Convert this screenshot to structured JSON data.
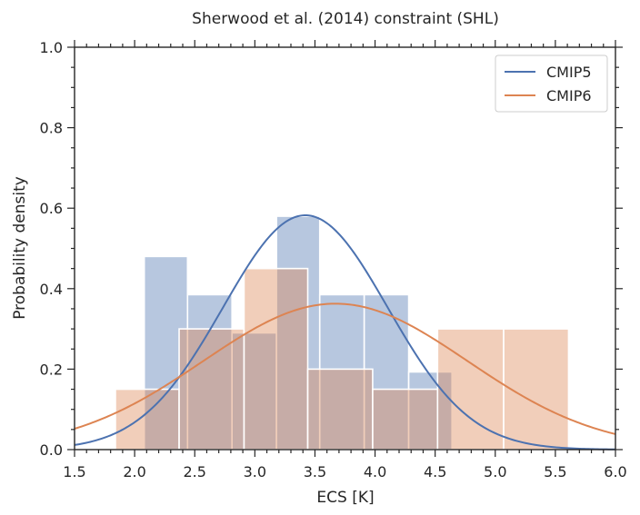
{
  "chart_data": {
    "type": "bar",
    "title": "Sherwood et al. (2014) constraint (SHL)",
    "xlabel": "ECS [K]",
    "ylabel": "Probability density",
    "xlim": [
      1.5,
      6.0
    ],
    "ylim": [
      0.0,
      1.0
    ],
    "xticks": [
      1.5,
      2.0,
      2.5,
      3.0,
      3.5,
      4.0,
      4.5,
      5.0,
      5.5,
      6.0
    ],
    "xtick_labels": [
      "1.5",
      "2.0",
      "2.5",
      "3.0",
      "3.5",
      "4.0",
      "4.5",
      "5.0",
      "5.5",
      "6.0"
    ],
    "yticks": [
      0.0,
      0.2,
      0.4,
      0.6,
      0.8,
      1.0
    ],
    "ytick_labels": [
      "0.0",
      "0.2",
      "0.4",
      "0.6",
      "0.8",
      "1.0"
    ],
    "legend_position": "top-right",
    "series": [
      {
        "name": "CMIP5",
        "color": "#4c72b0",
        "histogram": [
          {
            "x0": 2.08,
            "x1": 2.44,
            "value": 0.48
          },
          {
            "x0": 2.44,
            "x1": 2.81,
            "value": 0.385
          },
          {
            "x0": 2.81,
            "x1": 3.18,
            "value": 0.29
          },
          {
            "x0": 3.18,
            "x1": 3.54,
            "value": 0.58
          },
          {
            "x0": 3.54,
            "x1": 3.91,
            "value": 0.385
          },
          {
            "x0": 3.91,
            "x1": 4.28,
            "value": 0.385
          },
          {
            "x0": 4.28,
            "x1": 4.64,
            "value": 0.193
          }
        ],
        "normal_fit": {
          "mean": 3.42,
          "std": 0.685
        }
      },
      {
        "name": "CMIP6",
        "color": "#dd8452",
        "histogram": [
          {
            "x0": 1.84,
            "x1": 2.37,
            "value": 0.15
          },
          {
            "x0": 2.37,
            "x1": 2.91,
            "value": 0.3
          },
          {
            "x0": 2.91,
            "x1": 3.44,
            "value": 0.45
          },
          {
            "x0": 3.44,
            "x1": 3.98,
            "value": 0.2
          },
          {
            "x0": 3.98,
            "x1": 4.52,
            "value": 0.15
          },
          {
            "x0": 4.52,
            "x1": 5.07,
            "value": 0.3
          },
          {
            "x0": 5.07,
            "x1": 5.61,
            "value": 0.3
          }
        ],
        "normal_fit": {
          "mean": 3.67,
          "std": 1.1
        }
      }
    ]
  }
}
